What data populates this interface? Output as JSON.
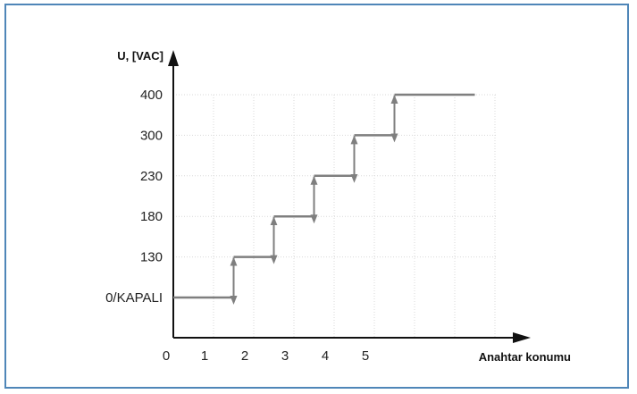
{
  "chart_data": {
    "type": "line",
    "ylabel": "U, [VAC]",
    "xlabel": "Anahtar konumu",
    "x_ticks": [
      "0",
      "1",
      "2",
      "3",
      "4",
      "5"
    ],
    "y_ticks": [
      "0/KAPALI",
      "130",
      "180",
      "230",
      "300",
      "400"
    ],
    "grid": true,
    "series": [
      {
        "steps": [
          {
            "from_position": 0,
            "to_position": 1.5,
            "level": "0/KAPALI"
          },
          {
            "from_position": 1.5,
            "to_position": 2.5,
            "level": "130"
          },
          {
            "from_position": 2.5,
            "to_position": 3.5,
            "level": "180"
          },
          {
            "from_position": 3.5,
            "to_position": 4.5,
            "level": "230"
          },
          {
            "from_position": 4.5,
            "to_position": 5.5,
            "level": "300"
          },
          {
            "from_position": 5.5,
            "to_position": 7.5,
            "level": "400"
          }
        ]
      }
    ]
  },
  "colors": {
    "frame": "#4f86b8",
    "line": "#7f7f7f",
    "axis": "#111111",
    "grid": "#d9d9d9"
  }
}
